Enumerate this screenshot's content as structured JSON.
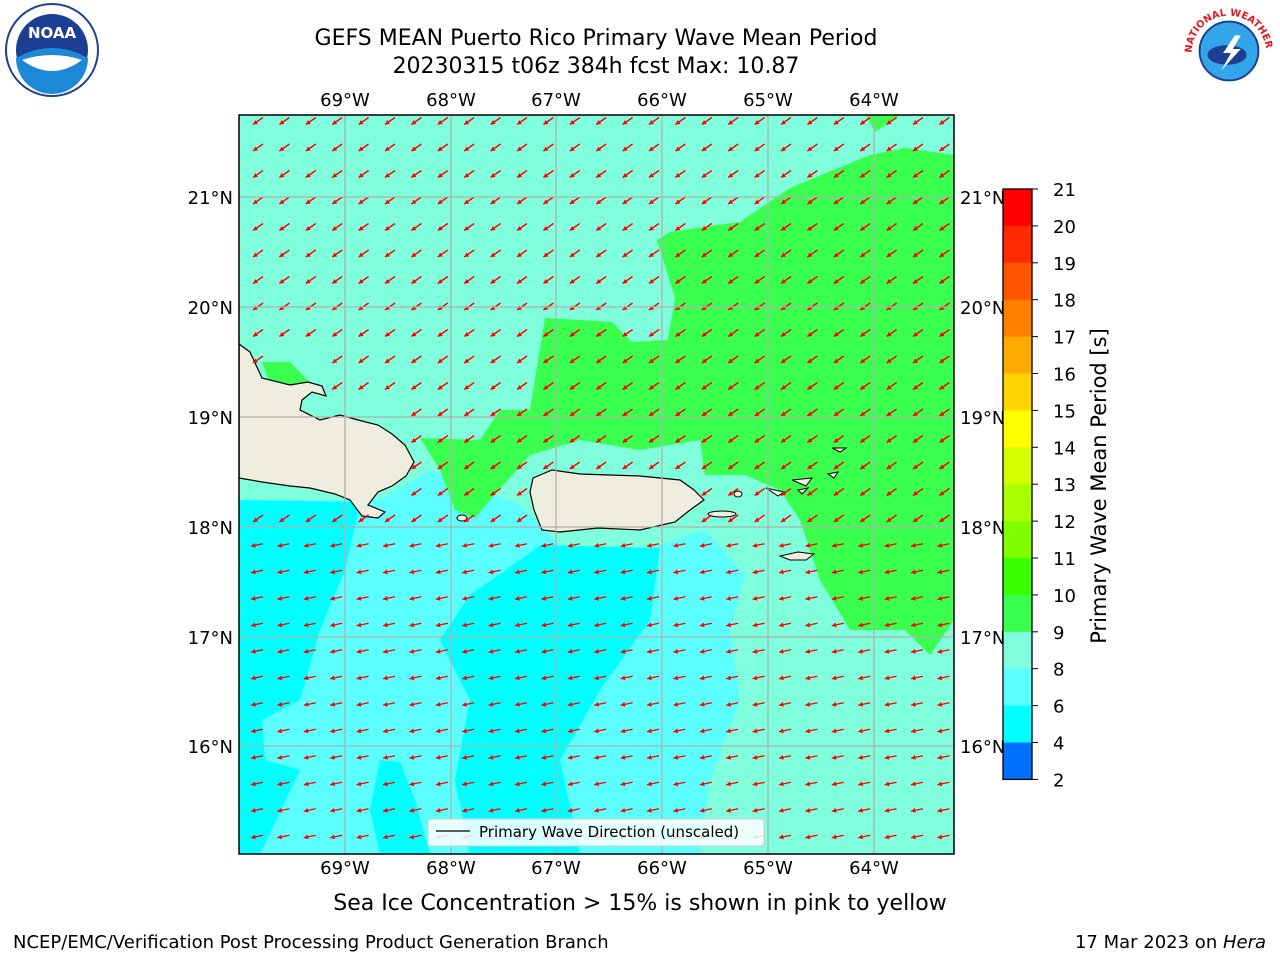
{
  "title": {
    "line1": "GEFS MEAN Puerto Rico Primary Wave Mean Period",
    "line2": "20230315 t06z 384h fcst   Max: 10.87"
  },
  "map": {
    "lon_labels": [
      "69°W",
      "68°W",
      "67°W",
      "66°W",
      "65°W",
      "64°W"
    ],
    "lat_labels": [
      "21°N",
      "20°N",
      "19°N",
      "18°N",
      "17°N",
      "16°N"
    ],
    "legend_label": "Primary Wave Direction (unscaled)",
    "arrow_color": "#ff0000",
    "land_color": "#efedde"
  },
  "colorbar": {
    "label": "Primary Wave Mean Period [s]",
    "ticks": [
      "21",
      "20",
      "19",
      "18",
      "17",
      "16",
      "15",
      "14",
      "13",
      "12",
      "11",
      "10",
      "9",
      "8",
      "6",
      "4",
      "2"
    ],
    "colors": [
      "#ff0000",
      "#ff2a00",
      "#ff5500",
      "#ff7f00",
      "#ffaa00",
      "#ffd400",
      "#ffff00",
      "#d4ff00",
      "#aaff00",
      "#7fff00",
      "#39ff00",
      "#39ff4e",
      "#7fffdc",
      "#5bfffd",
      "#00ffff",
      "#0070ff",
      "#0000ff"
    ]
  },
  "caption": "Sea Ice Concentration > 15% is shown in pink to yellow",
  "footer": {
    "left": "NCEP/EMC/Verification Post Processing Product Generation Branch",
    "right_prefix": "17 Mar 2023 on ",
    "right_italic": "Hera"
  },
  "logos": {
    "noaa": "NOAA",
    "nws_text": "NATIONAL WEATHER SERVICE"
  }
}
